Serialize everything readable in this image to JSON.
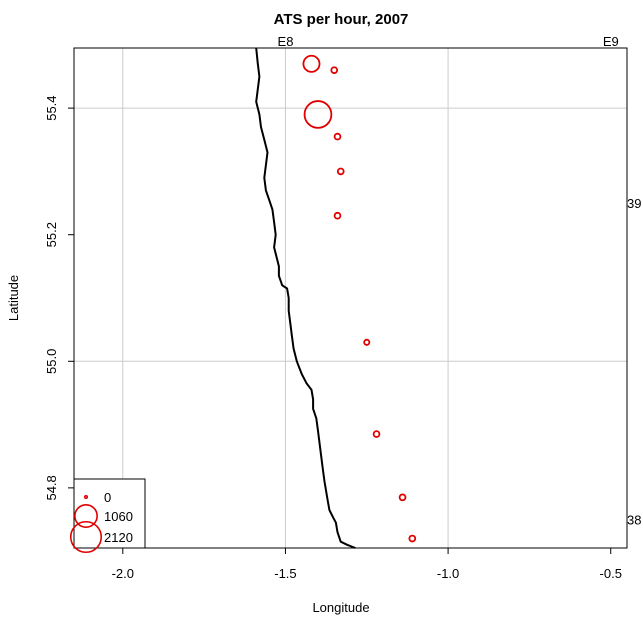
{
  "chart_data": {
    "type": "scatter",
    "title": "ATS per hour, 2007",
    "xlabel": "Longitude",
    "ylabel": "Latitude",
    "xlim": [
      -2.15,
      -0.45
    ],
    "ylim": [
      54.705,
      55.495
    ],
    "x_ticks": [
      -2.0,
      -1.5,
      -1.0,
      -0.5
    ],
    "x_tick_labels": [
      "-2.0",
      "-1.5",
      "-1.0",
      "-0.5"
    ],
    "y_ticks": [
      54.8,
      55.0,
      55.2,
      55.4
    ],
    "y_tick_labels": [
      "54.8",
      "55.0",
      "55.2",
      "55.4"
    ],
    "gridlines_x": [
      -2.0,
      -1.5,
      -1.0
    ],
    "gridlines_y": [
      55.0,
      55.4
    ],
    "grid": true,
    "top_labels": [
      {
        "text": "E8",
        "x": -1.5
      },
      {
        "text": "E9",
        "x": -0.5
      }
    ],
    "right_labels": [
      {
        "text": "39",
        "y": 55.25
      },
      {
        "text": "38",
        "y": 54.75
      }
    ],
    "marker_color": "#e00000",
    "coastline_color": "#000000",
    "series": [
      {
        "points": [
          {
            "x": -1.42,
            "y": 55.47,
            "value": 500
          },
          {
            "x": -1.4,
            "y": 55.39,
            "value": 1600
          },
          {
            "x": -1.35,
            "y": 55.46,
            "value": 30
          },
          {
            "x": -1.34,
            "y": 55.355,
            "value": 30
          },
          {
            "x": -1.33,
            "y": 55.3,
            "value": 30
          },
          {
            "x": -1.34,
            "y": 55.23,
            "value": 30
          },
          {
            "x": -1.25,
            "y": 55.03,
            "value": 20
          },
          {
            "x": -1.22,
            "y": 54.885,
            "value": 30
          },
          {
            "x": -1.14,
            "y": 54.785,
            "value": 30
          },
          {
            "x": -1.11,
            "y": 54.72,
            "value": 30
          }
        ]
      }
    ],
    "coastline": [
      [
        -1.59,
        55.495
      ],
      [
        -1.585,
        55.47
      ],
      [
        -1.58,
        55.45
      ],
      [
        -1.585,
        55.43
      ],
      [
        -1.59,
        55.41
      ],
      [
        -1.58,
        55.39
      ],
      [
        -1.575,
        55.37
      ],
      [
        -1.565,
        55.35
      ],
      [
        -1.555,
        55.33
      ],
      [
        -1.56,
        55.31
      ],
      [
        -1.565,
        55.29
      ],
      [
        -1.56,
        55.27
      ],
      [
        -1.55,
        55.255
      ],
      [
        -1.54,
        55.24
      ],
      [
        -1.535,
        55.22
      ],
      [
        -1.53,
        55.2
      ],
      [
        -1.535,
        55.18
      ],
      [
        -1.525,
        55.16
      ],
      [
        -1.52,
        55.15
      ],
      [
        -1.52,
        55.135
      ],
      [
        -1.51,
        55.12
      ],
      [
        -1.495,
        55.115
      ],
      [
        -1.49,
        55.1
      ],
      [
        -1.49,
        55.08
      ],
      [
        -1.485,
        55.06
      ],
      [
        -1.48,
        55.04
      ],
      [
        -1.475,
        55.02
      ],
      [
        -1.465,
        55.0
      ],
      [
        -1.45,
        54.98
      ],
      [
        -1.435,
        54.965
      ],
      [
        -1.42,
        54.955
      ],
      [
        -1.415,
        54.94
      ],
      [
        -1.415,
        54.925
      ],
      [
        -1.405,
        54.91
      ],
      [
        -1.4,
        54.89
      ],
      [
        -1.395,
        54.87
      ],
      [
        -1.39,
        54.85
      ],
      [
        -1.385,
        54.83
      ],
      [
        -1.38,
        54.81
      ],
      [
        -1.375,
        54.795
      ],
      [
        -1.37,
        54.78
      ],
      [
        -1.365,
        54.765
      ],
      [
        -1.355,
        54.755
      ],
      [
        -1.345,
        54.745
      ],
      [
        -1.34,
        54.73
      ],
      [
        -1.33,
        54.715
      ],
      [
        -1.31,
        54.71
      ],
      [
        -1.285,
        54.705
      ]
    ],
    "legend": {
      "position": "bottom-left",
      "entries": [
        {
          "label": "0",
          "value": 0
        },
        {
          "label": "1060",
          "value": 1060
        },
        {
          "label": "2120",
          "value": 2120
        }
      ]
    }
  }
}
